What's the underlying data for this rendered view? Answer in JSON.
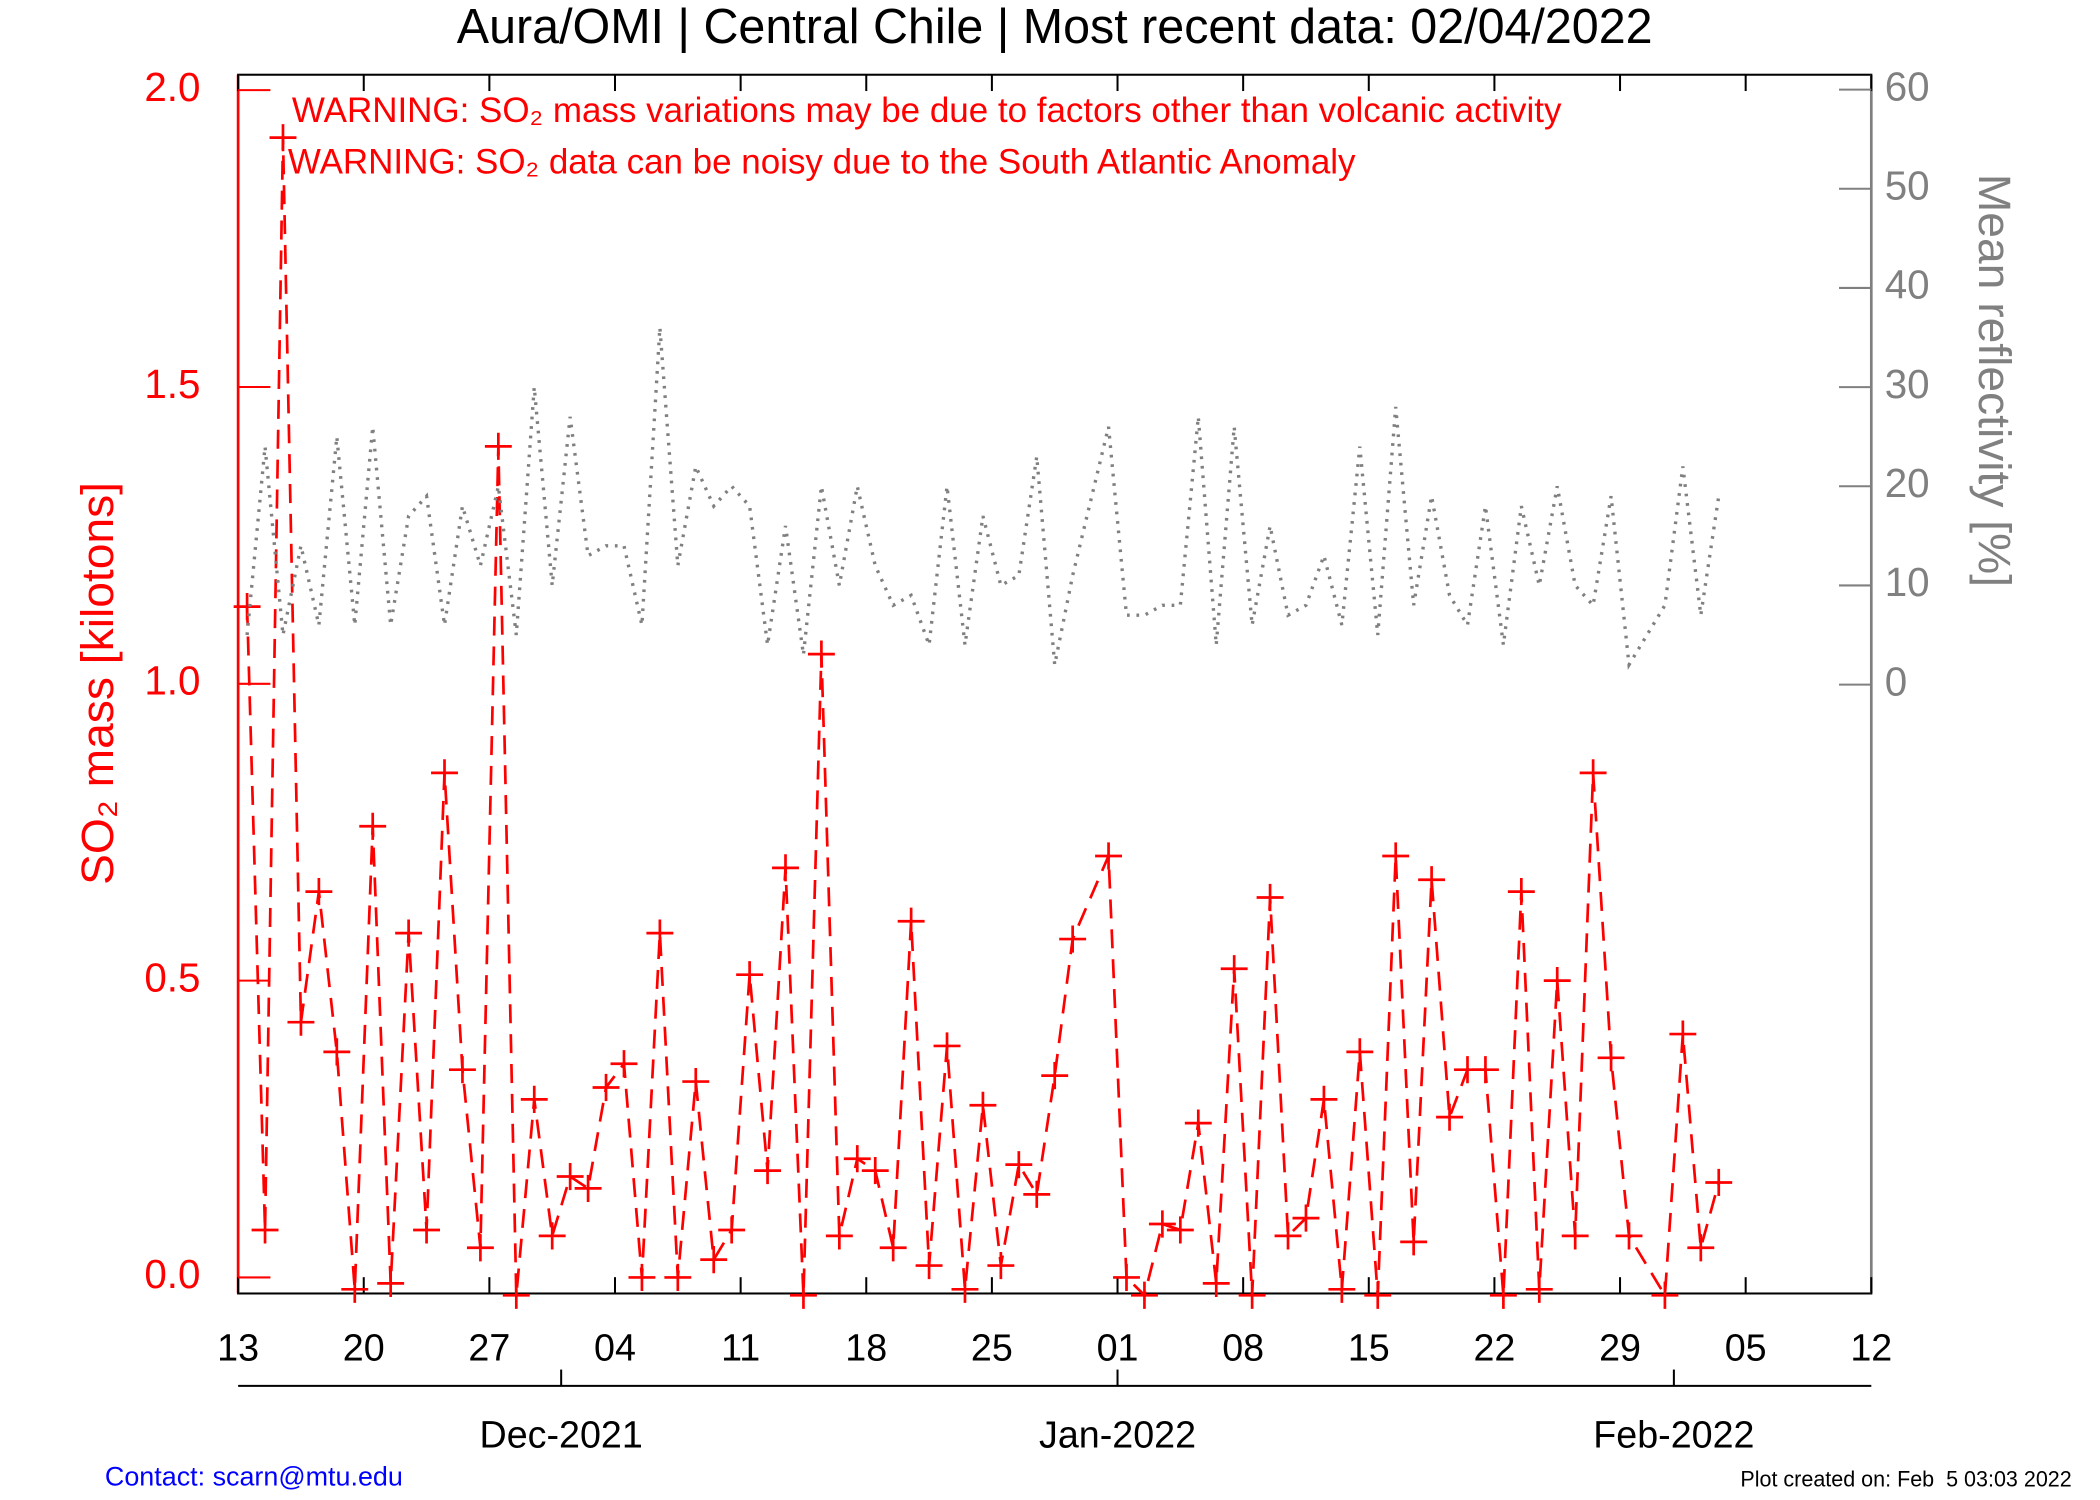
{
  "chart_data": {
    "type": "line",
    "title": "Aura/OMI | Central Chile | Most recent data: 02/04/2022",
    "annotations": [
      "WARNING: SO₂ mass variations may be due to factors other than volcanic activity",
      "WARNING: SO₂ data can be noisy due to the South Atlantic Anomaly"
    ],
    "ylabel": "SO₂ mass [kilotons]",
    "y2label": "Mean reflectivity [%]",
    "contact": "Contact: scarn@mtu.edu",
    "created": "Plot created on: Feb  5 03:03 2022",
    "x": [
      "2021-11-13",
      "2021-11-14",
      "2021-11-15",
      "2021-11-16",
      "2021-11-17",
      "2021-11-18",
      "2021-11-19",
      "2021-11-20",
      "2021-11-21",
      "2021-11-22",
      "2021-11-23",
      "2021-11-24",
      "2021-11-25",
      "2021-11-26",
      "2021-11-27",
      "2021-11-28",
      "2021-11-29",
      "2021-11-30",
      "2021-12-01",
      "2021-12-02",
      "2021-12-03",
      "2021-12-04",
      "2021-12-05",
      "2021-12-06",
      "2021-12-07",
      "2021-12-08",
      "2021-12-09",
      "2021-12-10",
      "2021-12-11",
      "2021-12-12",
      "2021-12-13",
      "2021-12-14",
      "2021-12-15",
      "2021-12-16",
      "2021-12-17",
      "2021-12-18",
      "2021-12-19",
      "2021-12-20",
      "2021-12-21",
      "2021-12-22",
      "2021-12-23",
      "2021-12-24",
      "2021-12-25",
      "2021-12-26",
      "2021-12-27",
      "2021-12-28",
      "2021-12-29",
      "2021-12-31",
      "2022-01-01",
      "2022-01-02",
      "2022-01-03",
      "2022-01-04",
      "2022-01-05",
      "2022-01-06",
      "2022-01-07",
      "2022-01-08",
      "2022-01-09",
      "2022-01-10",
      "2022-01-11",
      "2022-01-12",
      "2022-01-13",
      "2022-01-14",
      "2022-01-15",
      "2022-01-16",
      "2022-01-17",
      "2022-01-18",
      "2022-01-19",
      "2022-01-20",
      "2022-01-21",
      "2022-01-22",
      "2022-01-23",
      "2022-01-24",
      "2022-01-25",
      "2022-01-26",
      "2022-01-27",
      "2022-01-28",
      "2022-01-29",
      "2022-01-31",
      "2022-02-01",
      "2022-02-02",
      "2022-02-03"
    ],
    "series": [
      {
        "color": "#ff0000",
        "line": "dashed",
        "marker": "plus",
        "values": [
          1.13,
          0.08,
          1.92,
          0.43,
          0.65,
          0.38,
          -0.02,
          0.76,
          -0.01,
          0.58,
          0.08,
          0.85,
          0.35,
          0.05,
          1.4,
          -0.03,
          0.3,
          0.07,
          0.17,
          0.15,
          0.32,
          0.36,
          0.0,
          0.58,
          0.0,
          0.33,
          0.03,
          0.08,
          0.51,
          0.18,
          0.69,
          -0.03,
          1.05,
          0.07,
          0.2,
          0.18,
          0.05,
          0.6,
          0.02,
          0.39,
          -0.02,
          0.29,
          0.02,
          0.19,
          0.14,
          0.34,
          0.57,
          0.71,
          0.0,
          -0.03,
          0.09,
          0.08,
          0.26,
          -0.01,
          0.52,
          -0.03,
          0.64,
          0.07,
          0.1,
          0.3,
          -0.02,
          0.38,
          -0.03,
          0.71,
          0.06,
          0.67,
          0.27,
          0.35,
          0.35,
          -0.03,
          0.65,
          -0.02,
          0.5,
          0.07,
          0.85,
          0.37,
          0.07,
          -0.03,
          0.41,
          0.05,
          0.16
        ]
      },
      {
        "color": "#808080",
        "line": "dotted",
        "axis": "y2",
        "values": [
          5,
          24,
          5,
          14,
          6,
          25,
          6,
          26,
          6,
          17,
          19,
          6,
          18,
          12,
          20,
          5,
          30,
          10,
          27,
          13,
          14,
          14,
          6,
          36,
          12,
          22,
          18,
          20,
          18,
          4,
          16,
          3,
          20,
          10,
          20,
          12,
          8,
          9,
          4,
          20,
          4,
          17,
          10,
          11,
          23,
          2,
          11,
          26,
          7,
          7,
          8,
          8,
          27,
          4,
          26,
          6,
          16,
          7,
          8,
          13,
          6,
          24,
          5,
          28,
          8,
          19,
          9,
          6,
          18,
          4,
          18,
          10,
          20,
          10,
          8,
          19,
          2,
          8,
          22,
          7,
          19
        ]
      }
    ],
    "xlim": [
      "2021-11-13",
      "2022-02-12"
    ],
    "xticks": [
      {
        "value": "2021-11-13",
        "label": "13"
      },
      {
        "value": "2021-11-20",
        "label": "20"
      },
      {
        "value": "2021-11-27",
        "label": "27"
      },
      {
        "value": "2021-12-04",
        "label": "04"
      },
      {
        "value": "2021-12-11",
        "label": "11"
      },
      {
        "value": "2021-12-18",
        "label": "18"
      },
      {
        "value": "2021-12-25",
        "label": "25"
      },
      {
        "value": "2022-01-01",
        "label": "01"
      },
      {
        "value": "2022-01-08",
        "label": "08"
      },
      {
        "value": "2022-01-15",
        "label": "15"
      },
      {
        "value": "2022-01-22",
        "label": "22"
      },
      {
        "value": "2022-01-29",
        "label": "29"
      },
      {
        "value": "2022-02-05",
        "label": "05"
      },
      {
        "value": "2022-02-12",
        "label": "12"
      }
    ],
    "month_ticks": [
      {
        "value": "2021-12-01",
        "label": "Dec-2021"
      },
      {
        "value": "2022-01-01",
        "label": "Jan-2022"
      },
      {
        "value": "2022-02-01",
        "label": "Feb-2022"
      }
    ],
    "ylim": [
      -0.027,
      2.026
    ],
    "yticks": [
      {
        "value": 0,
        "label": "0.0"
      },
      0.5,
      {
        "value": 1,
        "label": "1.0"
      },
      1.5,
      {
        "value": 2,
        "label": "2.0"
      }
    ],
    "y2lim": [
      -61.4,
      61.5
    ],
    "y2ticks": [
      0,
      10,
      20,
      30,
      40,
      50,
      60
    ],
    "y2_color": "#808080",
    "grid": false
  }
}
